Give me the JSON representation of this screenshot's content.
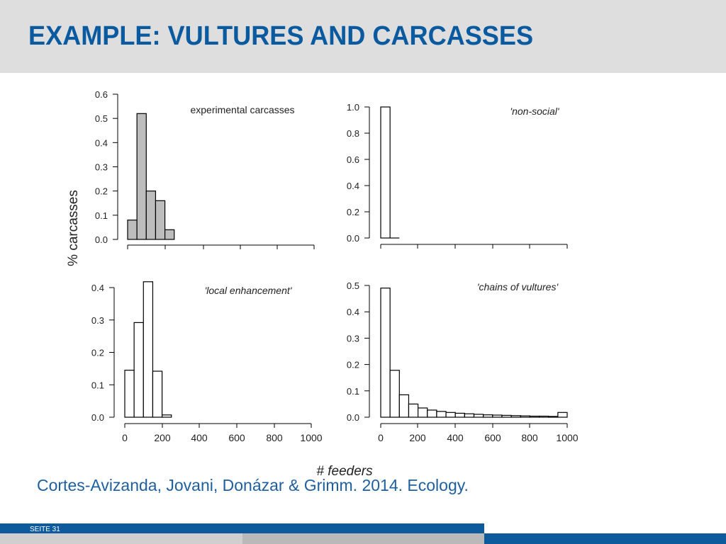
{
  "slide": {
    "title": "EXAMPLE: VULTURES AND CARCASSES",
    "citation": "Cortes-Avizanda, Jovani, Donázar & Grimm. 2014. Ecology.",
    "footer_label": "SEITE 31"
  },
  "colors": {
    "title": "#0a5aa0",
    "citation": "#1f5f9f",
    "footer": "#0d5b9c",
    "bar_gray": "#bdbdbd",
    "bar_white": "#ffffff"
  },
  "shared_axes": {
    "ylabel": "% carcasses",
    "xlabel": "# feeders"
  },
  "chart_data": [
    {
      "type": "bar",
      "title": "experimental carcasses",
      "title_style": "normal",
      "bar_fill": "gray",
      "bin_width": 50,
      "bin_starts": [
        0,
        50,
        100,
        150,
        200
      ],
      "values": [
        0.08,
        0.52,
        0.2,
        0.16,
        0.04
      ],
      "xlim": [
        -50,
        1000
      ],
      "ylim": [
        0,
        0.6
      ],
      "yticks": [
        "0.0",
        "0.1",
        "0.2",
        "0.3",
        "0.4",
        "0.5",
        "0.6"
      ],
      "xticks": [],
      "show_x_tick_labels": false
    },
    {
      "type": "bar",
      "title": "'non-social'",
      "title_style": "italic",
      "bar_fill": "white",
      "bin_width": 50,
      "bin_starts": [
        0,
        50
      ],
      "values": [
        1.0,
        0.0
      ],
      "xlim": [
        -50,
        1000
      ],
      "ylim": [
        0,
        1.0
      ],
      "yticks": [
        "0.0",
        "0.2",
        "0.4",
        "0.6",
        "0.8",
        "1.0"
      ],
      "xticks": [],
      "show_x_tick_labels": false
    },
    {
      "type": "bar",
      "title": "'local enhancement'",
      "title_style": "italic",
      "bar_fill": "white",
      "bin_width": 50,
      "bin_starts": [
        0,
        50,
        100,
        150,
        200
      ],
      "values": [
        0.145,
        0.292,
        0.418,
        0.142,
        0.007
      ],
      "xlim": [
        -30,
        1000
      ],
      "ylim": [
        0,
        0.4
      ],
      "yticks": [
        "0.0",
        "0.1",
        "0.2",
        "0.3",
        "0.4"
      ],
      "xticks": [
        "0",
        "200",
        "400",
        "600",
        "800",
        "1000"
      ],
      "show_x_tick_labels": true
    },
    {
      "type": "bar",
      "title": "'chains of vultures'",
      "title_style": "italic",
      "bar_fill": "white",
      "bin_width": 50,
      "bin_starts": [
        0,
        50,
        100,
        150,
        200,
        250,
        300,
        350,
        400,
        450,
        500,
        550,
        600,
        650,
        700,
        750,
        800,
        850,
        900,
        950
      ],
      "values": [
        0.49,
        0.178,
        0.085,
        0.05,
        0.035,
        0.027,
        0.022,
        0.018,
        0.015,
        0.013,
        0.011,
        0.009,
        0.008,
        0.007,
        0.006,
        0.005,
        0.004,
        0.004,
        0.003,
        0.018
      ],
      "xlim": [
        -30,
        1000
      ],
      "ylim": [
        0,
        0.5
      ],
      "yticks": [
        "0.0",
        "0.1",
        "0.2",
        "0.3",
        "0.4",
        "0.5"
      ],
      "xticks": [
        "0",
        "200",
        "400",
        "600",
        "800",
        "1000"
      ],
      "show_x_tick_labels": true
    }
  ]
}
